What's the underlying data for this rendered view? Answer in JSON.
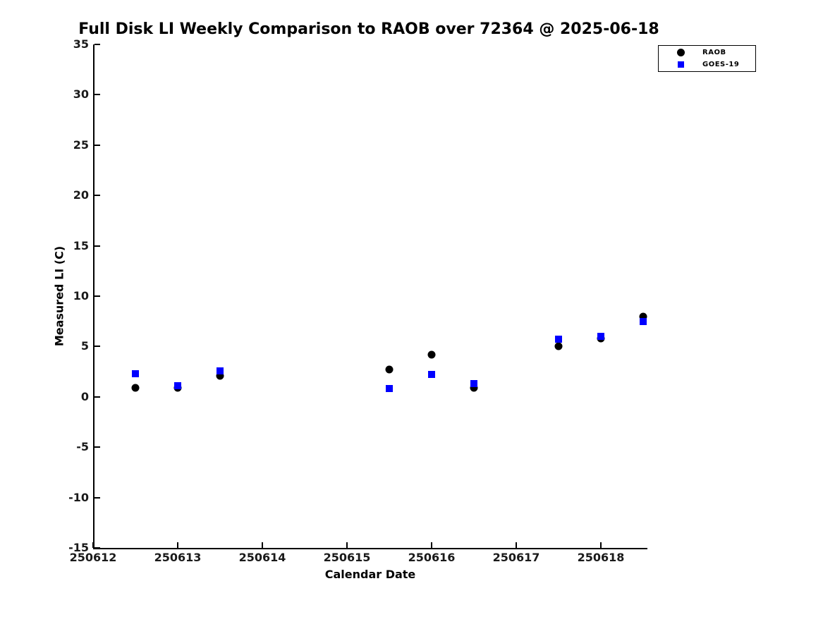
{
  "chart_data": {
    "type": "scatter",
    "title": "Full Disk LI Weekly Comparison to RAOB over 72364 @ 2025-06-18",
    "xlabel": "Calendar Date",
    "ylabel": "Measured LI (C)",
    "xlim": [
      250612,
      250618.55
    ],
    "ylim": [
      -15,
      35
    ],
    "x_ticks": [
      250612,
      250613,
      250614,
      250615,
      250616,
      250617,
      250618
    ],
    "y_ticks": [
      35,
      30,
      25,
      20,
      15,
      10,
      5,
      0,
      -5,
      -10,
      -15
    ],
    "grid": false,
    "background_color": "#ffffff",
    "axis_color": "#000000",
    "legend_position": "outside-top-right",
    "series": [
      {
        "name": "RAOB",
        "marker": "circle",
        "color": "#000000",
        "x": [
          250612.5,
          250613.0,
          250613.5,
          250615.5,
          250616.0,
          250616.5,
          250617.5,
          250618.0,
          250618.5
        ],
        "y": [
          0.9,
          0.9,
          2.1,
          2.7,
          4.2,
          0.9,
          5.0,
          5.8,
          8.0
        ]
      },
      {
        "name": "GOES-19",
        "marker": "square",
        "color": "#0000ff",
        "x": [
          250612.5,
          250613.0,
          250613.5,
          250615.5,
          250616.0,
          250616.5,
          250617.5,
          250618.0,
          250618.5
        ],
        "y": [
          2.3,
          1.1,
          2.6,
          0.8,
          2.2,
          1.3,
          5.7,
          6.0,
          7.5
        ]
      }
    ]
  }
}
